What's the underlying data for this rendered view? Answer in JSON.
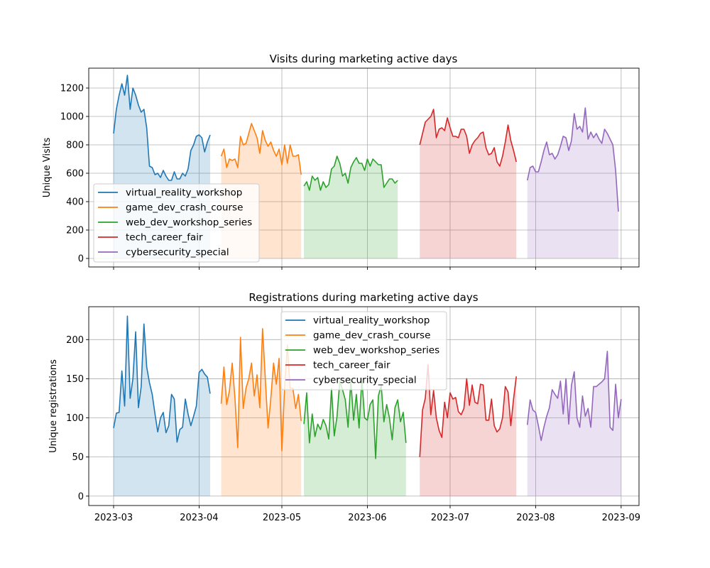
{
  "chart_data": [
    {
      "type": "line",
      "title": "Visits during marketing active days",
      "xlabel": "",
      "ylabel": "Unique Visits",
      "ylim": [
        -60,
        1340
      ],
      "yticks": [
        0,
        200,
        400,
        600,
        800,
        1000,
        1200
      ],
      "xticks": [
        "2023-03",
        "2023-04",
        "2023-05",
        "2023-06",
        "2023-07",
        "2023-08",
        "2023-09"
      ],
      "xticks_labeled": false,
      "grid": true,
      "area_fill": true,
      "legend_position": "lower-left",
      "series": [
        {
          "name": "virtual_reality_workshop",
          "color": "#1f77b4",
          "start_date": "2023-03-01",
          "values": [
            880,
            1050,
            1150,
            1230,
            1150,
            1290,
            1050,
            1200,
            1150,
            1080,
            1030,
            1050,
            920,
            650,
            640,
            590,
            600,
            570,
            620,
            580,
            550,
            550,
            610,
            560,
            560,
            600,
            580,
            630,
            760,
            800,
            860,
            870,
            850,
            750,
            820,
            870
          ]
        },
        {
          "name": "game_dev_crash_course",
          "color": "#ff7f0e",
          "start_date": "2023-04-09",
          "values": [
            720,
            770,
            640,
            700,
            690,
            700,
            640,
            860,
            800,
            810,
            880,
            950,
            900,
            850,
            740,
            900,
            830,
            790,
            820,
            760,
            720,
            770,
            660,
            800,
            670,
            800,
            720,
            720,
            730,
            590
          ]
        },
        {
          "name": "web_dev_workshop_series",
          "color": "#2ca02c",
          "start_date": "2023-05-09",
          "values": [
            510,
            540,
            480,
            580,
            550,
            570,
            480,
            540,
            500,
            520,
            630,
            650,
            720,
            670,
            580,
            600,
            530,
            640,
            680,
            710,
            670,
            670,
            620,
            700,
            650,
            700,
            680,
            660,
            660,
            500,
            530,
            560,
            560,
            530,
            550
          ]
        },
        {
          "name": "tech_career_fair",
          "color": "#d62728",
          "start_date": "2023-06-20",
          "values": [
            800,
            880,
            960,
            980,
            1000,
            1050,
            850,
            910,
            920,
            900,
            990,
            920,
            860,
            860,
            850,
            910,
            910,
            860,
            740,
            800,
            830,
            850,
            880,
            890,
            780,
            730,
            740,
            780,
            680,
            650,
            720,
            820,
            940,
            830,
            760,
            680
          ]
        },
        {
          "name": "cybersecurity_special",
          "color": "#9467bd",
          "start_date": "2023-07-29",
          "values": [
            550,
            640,
            650,
            610,
            610,
            680,
            760,
            820,
            730,
            740,
            700,
            730,
            790,
            860,
            850,
            760,
            830,
            1020,
            910,
            930,
            890,
            1060,
            840,
            890,
            850,
            880,
            840,
            810,
            910,
            880,
            840,
            800,
            620,
            330
          ]
        }
      ]
    },
    {
      "type": "line",
      "title": "Registrations during marketing active days",
      "xlabel": "",
      "ylabel": "Unique registrations",
      "ylim": [
        -12,
        242
      ],
      "yticks": [
        0,
        50,
        100,
        150,
        200
      ],
      "xticks": [
        "2023-03",
        "2023-04",
        "2023-05",
        "2023-06",
        "2023-07",
        "2023-08",
        "2023-09"
      ],
      "xticks_labeled": true,
      "grid": true,
      "area_fill": true,
      "legend_position": "upper-center",
      "series": [
        {
          "name": "virtual_reality_workshop",
          "color": "#1f77b4",
          "start_date": "2023-03-01",
          "values": [
            87,
            106,
            107,
            160,
            115,
            230,
            125,
            150,
            210,
            113,
            140,
            220,
            165,
            145,
            130,
            105,
            82,
            100,
            107,
            81,
            90,
            130,
            124,
            69,
            85,
            88,
            124,
            105,
            90,
            102,
            115,
            158,
            162,
            156,
            152,
            131
          ]
        },
        {
          "name": "game_dev_crash_course",
          "color": "#ff7f0e",
          "start_date": "2023-04-09",
          "values": [
            118,
            165,
            117,
            135,
            170,
            125,
            62,
            203,
            112,
            138,
            150,
            170,
            128,
            155,
            113,
            214,
            150,
            87,
            125,
            170,
            143,
            176,
            58,
            140,
            193,
            138,
            138,
            112,
            130,
            96
          ]
        },
        {
          "name": "web_dev_workshop_series",
          "color": "#2ca02c",
          "start_date": "2023-05-09",
          "values": [
            92,
            132,
            68,
            105,
            76,
            92,
            85,
            98,
            90,
            73,
            138,
            77,
            102,
            147,
            136,
            123,
            88,
            148,
            97,
            130,
            87,
            150,
            100,
            97,
            117,
            123,
            48,
            128,
            142,
            95,
            117,
            100,
            72,
            113,
            123,
            95,
            107,
            68
          ]
        },
        {
          "name": "tech_career_fair",
          "color": "#d62728",
          "start_date": "2023-06-20",
          "values": [
            50,
            110,
            125,
            168,
            104,
            135,
            100,
            84,
            75,
            120,
            100,
            132,
            124,
            126,
            108,
            104,
            112,
            150,
            116,
            142,
            120,
            118,
            143,
            142,
            97,
            97,
            124,
            90,
            82,
            86,
            100,
            140,
            133,
            90,
            124,
            153
          ]
        },
        {
          "name": "cybersecurity_special",
          "color": "#9467bd",
          "start_date": "2023-07-29",
          "values": [
            91,
            123,
            110,
            107,
            90,
            71,
            88,
            102,
            113,
            136,
            130,
            125,
            147,
            105,
            150,
            92,
            142,
            159,
            100,
            88,
            128,
            102,
            112,
            88,
            140,
            140,
            143,
            146,
            150,
            185,
            88,
            84,
            143,
            100,
            124
          ]
        }
      ]
    }
  ]
}
